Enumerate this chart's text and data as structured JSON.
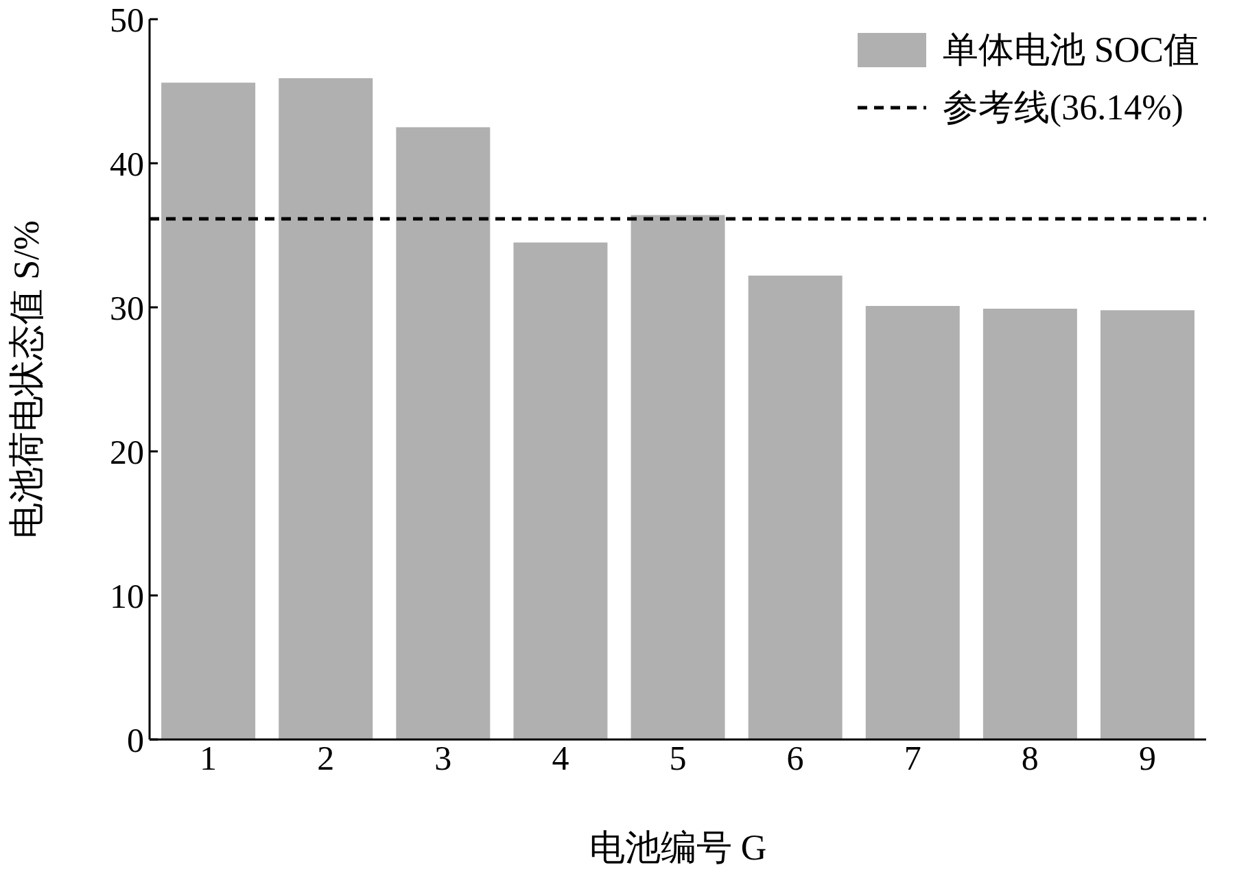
{
  "chart_data": {
    "type": "bar",
    "xlabel": "电池编号 G",
    "ylabel": "电池荷电状态值 S/%",
    "categories": [
      "1",
      "2",
      "3",
      "4",
      "5",
      "6",
      "7",
      "8",
      "9"
    ],
    "series": [
      {
        "name": "单体电池 SOC值",
        "color": "#b0b0b0",
        "values": [
          45.6,
          45.9,
          42.5,
          34.5,
          36.4,
          32.2,
          30.1,
          29.9,
          29.8
        ]
      }
    ],
    "ylim": [
      0,
      50
    ],
    "yticks": [
      0,
      10,
      20,
      30,
      40,
      50
    ],
    "grid": false,
    "legend": "top right",
    "ref_lines": [
      {
        "axis": "y",
        "value": 36.14,
        "label": "参考线(36.14%)",
        "color": "#000000",
        "line_style": "dashed"
      }
    ]
  }
}
